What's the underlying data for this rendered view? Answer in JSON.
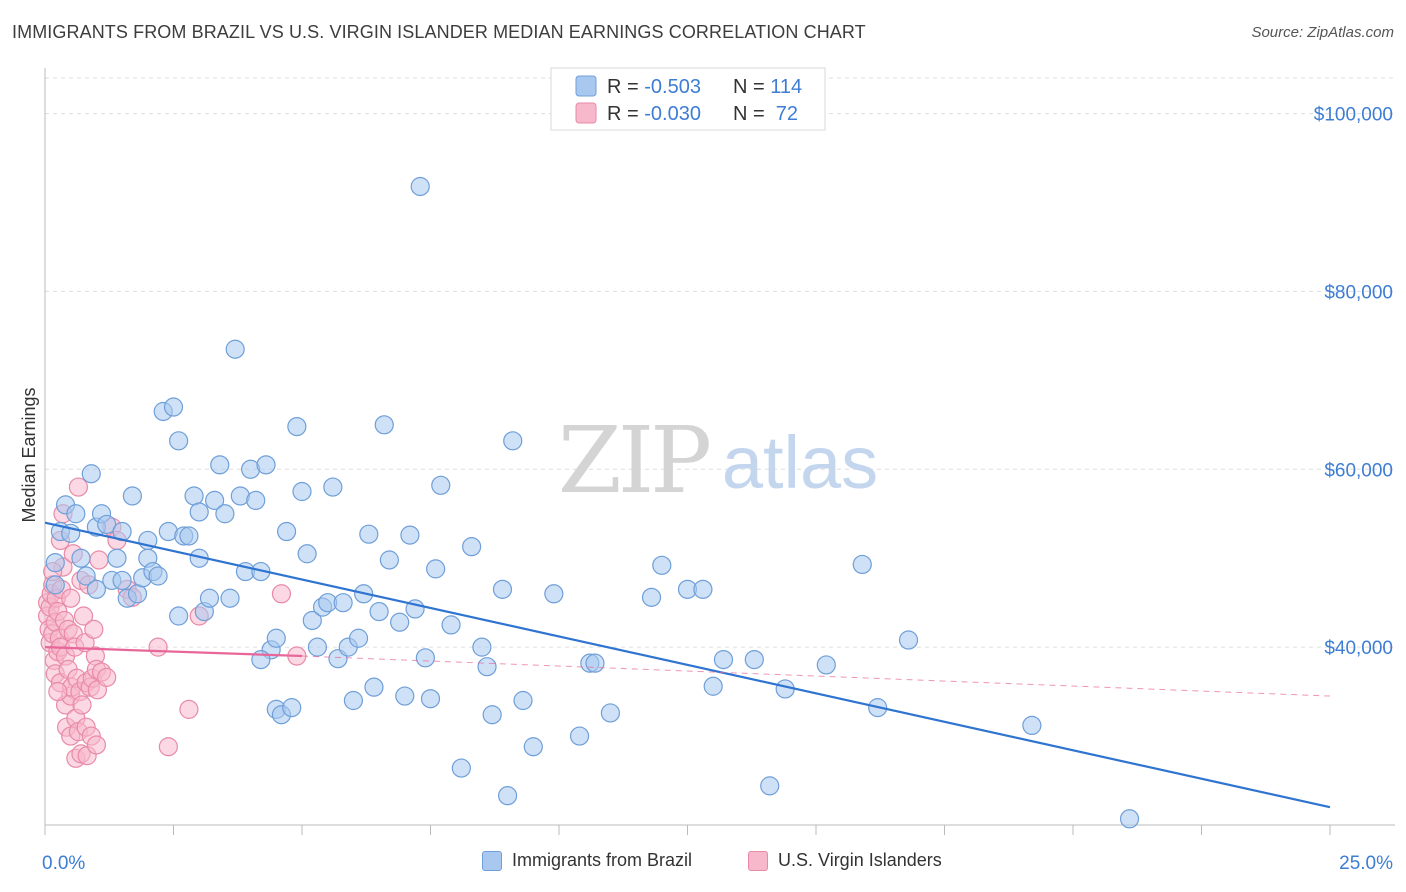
{
  "header": {
    "title": "IMMIGRANTS FROM BRAZIL VS U.S. VIRGIN ISLANDER MEDIAN EARNINGS CORRELATION CHART",
    "source": "Source: ZipAtlas.com"
  },
  "watermark": {
    "zip": "ZIP",
    "atlas": "atlas"
  },
  "legend_top": [
    {
      "r_label": "R = ",
      "r_value": "-0.503",
      "n_label": "N = ",
      "n_value": "114"
    },
    {
      "r_label": "R = ",
      "r_value": "-0.030",
      "n_label": "N = ",
      "n_value": " 72"
    }
  ],
  "colors": {
    "blue_fill": "#a8c8f0",
    "blue_stroke": "#6f9fd8",
    "blue_line": "#2f74d0",
    "pink_fill": "#f7b8cc",
    "pink_stroke": "#e88aa8",
    "pink_line": "#e8679a",
    "axis_label": "#3d7dd4",
    "grid": "#dddddd"
  },
  "chart_data": {
    "type": "scatter",
    "xlabel": "",
    "ylabel": "Median Earnings",
    "xlim": [
      0,
      25
    ],
    "ylim": [
      20000,
      104000
    ],
    "x_tick_labels": [
      "0.0%",
      "25.0%"
    ],
    "y_ticks": [
      40000,
      60000,
      80000,
      100000
    ],
    "y_tick_labels": [
      "$40,000",
      "$60,000",
      "$80,000",
      "$100,000"
    ],
    "grid": true,
    "legend_placement": "top-center",
    "series": [
      {
        "name": "Immigrants from Brazil",
        "r": -0.503,
        "n": 114,
        "trend": {
          "x0": 0,
          "y0": 54000,
          "x1": 25,
          "y1": 22000
        },
        "points": [
          [
            0.2,
            49500
          ],
          [
            0.2,
            47000
          ],
          [
            0.3,
            53000
          ],
          [
            0.4,
            56000
          ],
          [
            0.5,
            52800
          ],
          [
            0.6,
            55000
          ],
          [
            0.7,
            50000
          ],
          [
            0.8,
            48000
          ],
          [
            0.9,
            59500
          ],
          [
            1.0,
            53500
          ],
          [
            1.0,
            46500
          ],
          [
            1.1,
            55000
          ],
          [
            1.2,
            53800
          ],
          [
            1.3,
            47500
          ],
          [
            1.4,
            50000
          ],
          [
            1.5,
            53000
          ],
          [
            1.5,
            47500
          ],
          [
            1.6,
            45500
          ],
          [
            1.7,
            57000
          ],
          [
            1.8,
            46000
          ],
          [
            1.9,
            47800
          ],
          [
            2.0,
            50000
          ],
          [
            2.1,
            48500
          ],
          [
            2.2,
            48000
          ],
          [
            2.3,
            66500
          ],
          [
            2.4,
            53000
          ],
          [
            2.5,
            67000
          ],
          [
            2.6,
            63200
          ],
          [
            2.6,
            43500
          ],
          [
            2.7,
            52500
          ],
          [
            2.8,
            52500
          ],
          [
            2.9,
            57000
          ],
          [
            3.0,
            50000
          ],
          [
            3.1,
            44000
          ],
          [
            3.2,
            45500
          ],
          [
            3.3,
            56500
          ],
          [
            3.4,
            60500
          ],
          [
            3.5,
            55000
          ],
          [
            3.6,
            45500
          ],
          [
            3.7,
            73500
          ],
          [
            3.8,
            57000
          ],
          [
            3.9,
            48500
          ],
          [
            4.0,
            60000
          ],
          [
            4.1,
            56500
          ],
          [
            4.2,
            48500
          ],
          [
            4.3,
            60500
          ],
          [
            4.4,
            39700
          ],
          [
            4.5,
            41000
          ],
          [
            4.5,
            33000
          ],
          [
            4.6,
            32400
          ],
          [
            4.7,
            53000
          ],
          [
            4.8,
            33200
          ],
          [
            4.9,
            64800
          ],
          [
            5.0,
            57500
          ],
          [
            5.1,
            50500
          ],
          [
            5.2,
            43000
          ],
          [
            5.3,
            40000
          ],
          [
            5.4,
            44500
          ],
          [
            5.5,
            45000
          ],
          [
            5.6,
            58000
          ],
          [
            5.7,
            38700
          ],
          [
            5.8,
            45000
          ],
          [
            5.9,
            40000
          ],
          [
            6.0,
            34000
          ],
          [
            6.1,
            41000
          ],
          [
            6.2,
            46000
          ],
          [
            6.3,
            52700
          ],
          [
            6.4,
            35500
          ],
          [
            6.5,
            44000
          ],
          [
            6.6,
            65000
          ],
          [
            6.7,
            49800
          ],
          [
            6.9,
            42800
          ],
          [
            7.0,
            34500
          ],
          [
            7.1,
            52600
          ],
          [
            7.2,
            44300
          ],
          [
            7.3,
            91800
          ],
          [
            7.4,
            38800
          ],
          [
            7.5,
            34200
          ],
          [
            7.6,
            48800
          ],
          [
            7.7,
            58200
          ],
          [
            7.9,
            42500
          ],
          [
            8.1,
            26400
          ],
          [
            8.3,
            51300
          ],
          [
            8.5,
            40000
          ],
          [
            8.6,
            37800
          ],
          [
            8.7,
            32400
          ],
          [
            8.9,
            46500
          ],
          [
            9.0,
            23300
          ],
          [
            9.1,
            63200
          ],
          [
            9.3,
            34000
          ],
          [
            9.5,
            28800
          ],
          [
            9.9,
            46000
          ],
          [
            10.4,
            30000
          ],
          [
            10.6,
            38200
          ],
          [
            10.7,
            38200
          ],
          [
            11.0,
            32600
          ],
          [
            11.8,
            45600
          ],
          [
            12.0,
            49200
          ],
          [
            12.5,
            46500
          ],
          [
            12.8,
            46500
          ],
          [
            13.0,
            35600
          ],
          [
            13.2,
            38600
          ],
          [
            13.8,
            38600
          ],
          [
            14.1,
            24400
          ],
          [
            14.4,
            35300
          ],
          [
            15.2,
            38000
          ],
          [
            15.9,
            49300
          ],
          [
            16.2,
            33200
          ],
          [
            16.8,
            40800
          ],
          [
            19.2,
            31200
          ],
          [
            21.1,
            20700
          ],
          [
            4.2,
            38600
          ],
          [
            3.0,
            55200
          ],
          [
            2.0,
            52000
          ]
        ]
      },
      {
        "name": "U.S. Virgin Islanders",
        "r": -0.03,
        "n": 72,
        "trend": {
          "x0": 0,
          "y0": 40000,
          "x1": 5,
          "y1": 39000,
          "dash_x1": 25,
          "dash_y1": 34500
        },
        "points": [
          [
            0.05,
            45000
          ],
          [
            0.05,
            43500
          ],
          [
            0.08,
            42000
          ],
          [
            0.1,
            40500
          ],
          [
            0.1,
            44500
          ],
          [
            0.12,
            46000
          ],
          [
            0.15,
            47000
          ],
          [
            0.15,
            41500
          ],
          [
            0.18,
            38500
          ],
          [
            0.2,
            42800
          ],
          [
            0.2,
            37000
          ],
          [
            0.22,
            45500
          ],
          [
            0.25,
            39500
          ],
          [
            0.25,
            44000
          ],
          [
            0.28,
            41000
          ],
          [
            0.3,
            36000
          ],
          [
            0.3,
            40000
          ],
          [
            0.32,
            46500
          ],
          [
            0.35,
            49000
          ],
          [
            0.35,
            55000
          ],
          [
            0.38,
            43000
          ],
          [
            0.4,
            33500
          ],
          [
            0.4,
            39000
          ],
          [
            0.42,
            31000
          ],
          [
            0.45,
            37500
          ],
          [
            0.45,
            42000
          ],
          [
            0.5,
            34500
          ],
          [
            0.5,
            30000
          ],
          [
            0.52,
            35500
          ],
          [
            0.55,
            41500
          ],
          [
            0.55,
            50500
          ],
          [
            0.58,
            40000
          ],
          [
            0.6,
            27500
          ],
          [
            0.6,
            32000
          ],
          [
            0.62,
            36500
          ],
          [
            0.65,
            58000
          ],
          [
            0.65,
            30500
          ],
          [
            0.68,
            35000
          ],
          [
            0.7,
            28000
          ],
          [
            0.7,
            47500
          ],
          [
            0.72,
            33500
          ],
          [
            0.75,
            43500
          ],
          [
            0.78,
            40500
          ],
          [
            0.8,
            31000
          ],
          [
            0.8,
            36000
          ],
          [
            0.82,
            27800
          ],
          [
            0.85,
            47000
          ],
          [
            0.88,
            35500
          ],
          [
            0.9,
            30000
          ],
          [
            0.92,
            36500
          ],
          [
            0.95,
            42000
          ],
          [
            0.98,
            39000
          ],
          [
            1.0,
            37500
          ],
          [
            1.0,
            29000
          ],
          [
            1.02,
            35200
          ],
          [
            1.05,
            49800
          ],
          [
            1.1,
            37200
          ],
          [
            1.2,
            36600
          ],
          [
            1.3,
            53500
          ],
          [
            1.4,
            52000
          ],
          [
            1.6,
            46500
          ],
          [
            1.7,
            45600
          ],
          [
            2.2,
            40000
          ],
          [
            2.4,
            28800
          ],
          [
            2.8,
            33000
          ],
          [
            3.0,
            43500
          ],
          [
            4.6,
            46000
          ],
          [
            4.9,
            39000
          ],
          [
            0.15,
            48500
          ],
          [
            0.3,
            52000
          ],
          [
            0.5,
            45500
          ],
          [
            0.25,
            35000
          ]
        ]
      }
    ]
  },
  "legend_bottom": [
    {
      "label": "Immigrants from Brazil"
    },
    {
      "label": "U.S. Virgin Islanders"
    }
  ]
}
